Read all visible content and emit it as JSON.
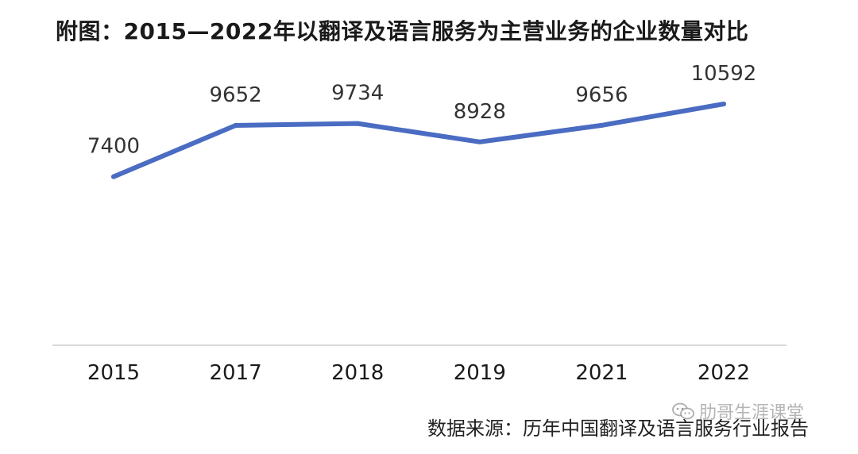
{
  "title": "附图：2015—2022年以翻译及语言服务为主营业务的企业数量对比",
  "source": "数据来源：历年中国翻译及语言服务行业报告",
  "watermark": "肋哥生涯课堂",
  "watermark_icon": "wechat-icon",
  "colors": {
    "line": "#4a6cc2",
    "axis": "#d9d9d9",
    "text": "#333333"
  },
  "chart_data": {
    "type": "line",
    "title": "附图：2015—2022年以翻译及语言服务为主营业务的企业数量对比",
    "xlabel": "",
    "ylabel": "",
    "categories": [
      "2015",
      "2017",
      "2018",
      "2019",
      "2021",
      "2022"
    ],
    "series": [
      {
        "values": [
          7400,
          9652,
          9734,
          8928,
          9656,
          10592
        ]
      }
    ],
    "ylim": [
      0,
      13000
    ],
    "data_labels": true,
    "grid": false,
    "legend": "none"
  }
}
